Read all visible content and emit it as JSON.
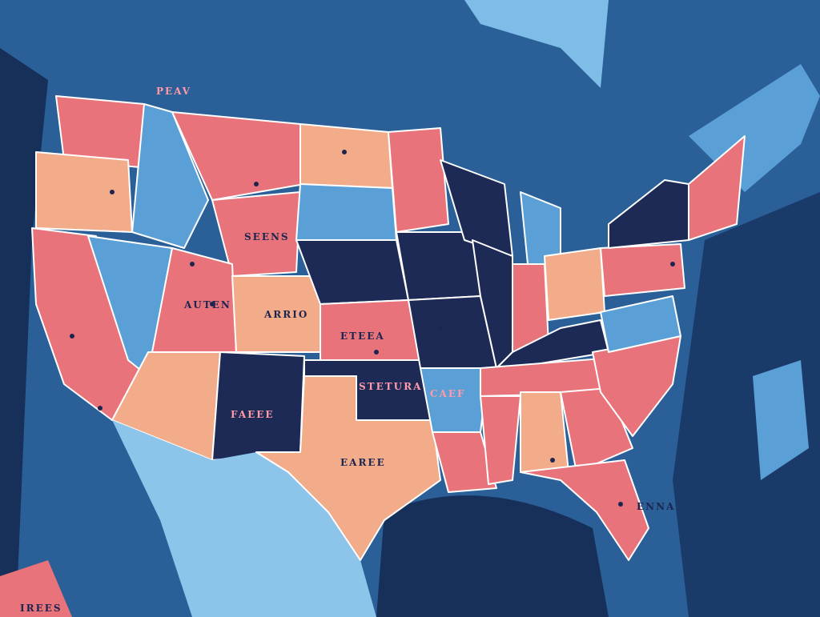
{
  "map": {
    "labels": [
      {
        "text": "PEAV"
      },
      {
        "text": "SEENS"
      },
      {
        "text": "AUTEN"
      },
      {
        "text": "ARRIO"
      },
      {
        "text": "ETEEA"
      },
      {
        "text": "STETURA"
      },
      {
        "text": "FAEEE"
      },
      {
        "text": "EAREE"
      },
      {
        "text": "CAEF"
      },
      {
        "text": "IREES"
      },
      {
        "text": "ENNA"
      }
    ]
  }
}
